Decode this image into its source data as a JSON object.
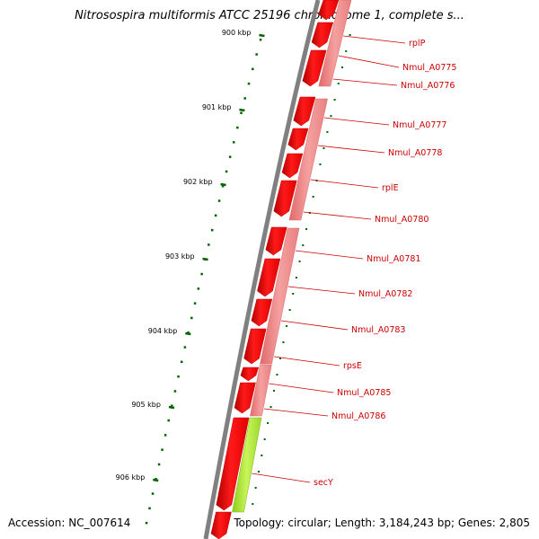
{
  "title": "Nitrosospira multiformis ATCC 25196 chromosome 1, complete s...",
  "accession": "Accession: NC_007614",
  "summary": "Topology: circular; Length: 3,184,243 bp; Genes: 2,805",
  "ruler": [
    "900 kbp",
    "901 kbp",
    "902 kbp",
    "903 kbp",
    "904 kbp",
    "905 kbp",
    "906 kbp"
  ],
  "genes": [
    {
      "name": "rplP",
      "color": "#ff0000"
    },
    {
      "name": "Nmul_A0775",
      "color": "#ff0000"
    },
    {
      "name": "Nmul_A0776",
      "color": "#ff0000"
    },
    {
      "name": "Nmul_A0777",
      "color": "#ff0000"
    },
    {
      "name": "Nmul_A0778",
      "color": "#ff0000"
    },
    {
      "name": "rplE",
      "color": "#ff0000"
    },
    {
      "name": "Nmul_A0780",
      "color": "#ff0000"
    },
    {
      "name": "Nmul_A0781",
      "color": "#ff0000"
    },
    {
      "name": "Nmul_A0782",
      "color": "#ff0000"
    },
    {
      "name": "Nmul_A0783",
      "color": "#ff0000"
    },
    {
      "name": "rpsE",
      "color": "#ff0000"
    },
    {
      "name": "Nmul_A0785",
      "color": "#ff0000"
    },
    {
      "name": "Nmul_A0786",
      "color": "#ff0000"
    },
    {
      "name": "secY",
      "color": "#ff0000"
    }
  ],
  "colors": {
    "gene_red": "#ff0000",
    "gene_pink": "#f08080",
    "gene_green": "#a6e62e",
    "backbone": "#808080",
    "ticks": "#006400",
    "labels": "#cc0000"
  }
}
